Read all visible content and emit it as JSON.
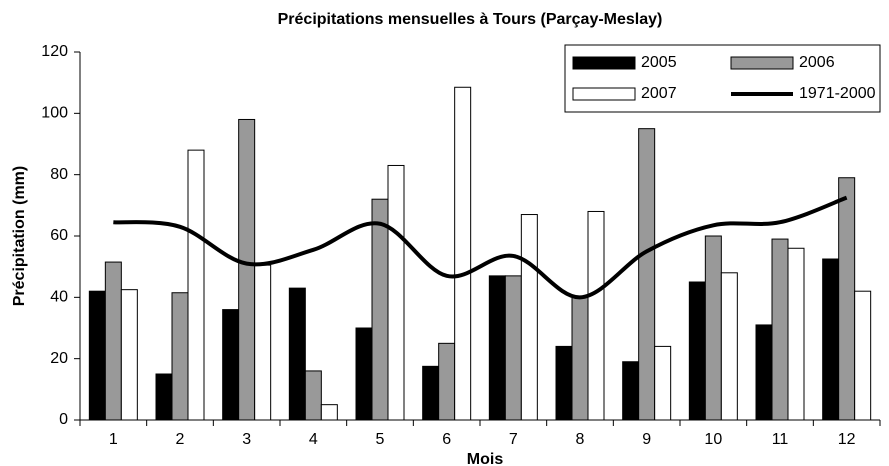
{
  "chart_data": {
    "type": "bar",
    "title": "Précipitations mensuelles à Tours (Parçay-Meslay)",
    "x_label": "Mois",
    "y_label": "Précipitation (mm)",
    "categories": [
      "1",
      "2",
      "3",
      "4",
      "5",
      "6",
      "7",
      "8",
      "9",
      "10",
      "11",
      "12"
    ],
    "series": [
      {
        "name": "2005",
        "color": "#000000",
        "values": [
          42,
          15,
          36,
          43,
          30,
          17.5,
          47,
          24,
          19,
          45,
          31,
          52.5
        ]
      },
      {
        "name": "2006",
        "color": "#999999",
        "values": [
          51.5,
          41.5,
          98,
          16,
          72,
          25,
          47,
          40,
          95,
          60,
          59,
          79
        ]
      },
      {
        "name": "2007",
        "color": "#ffffff",
        "values": [
          42.5,
          88,
          50.5,
          5,
          83,
          108.5,
          67,
          68,
          24,
          48,
          56,
          42
        ]
      },
      {
        "name": "1971-2000",
        "color": "#000000",
        "type": "line",
        "values": [
          64.5,
          63,
          51,
          55.5,
          64,
          47,
          53.5,
          40,
          55,
          63.5,
          64.5,
          72.5
        ]
      }
    ],
    "ylim": [
      0,
      120
    ],
    "yticks": [
      0,
      20,
      40,
      60,
      80,
      100,
      120
    ],
    "grid": false,
    "legend": "top-right"
  }
}
